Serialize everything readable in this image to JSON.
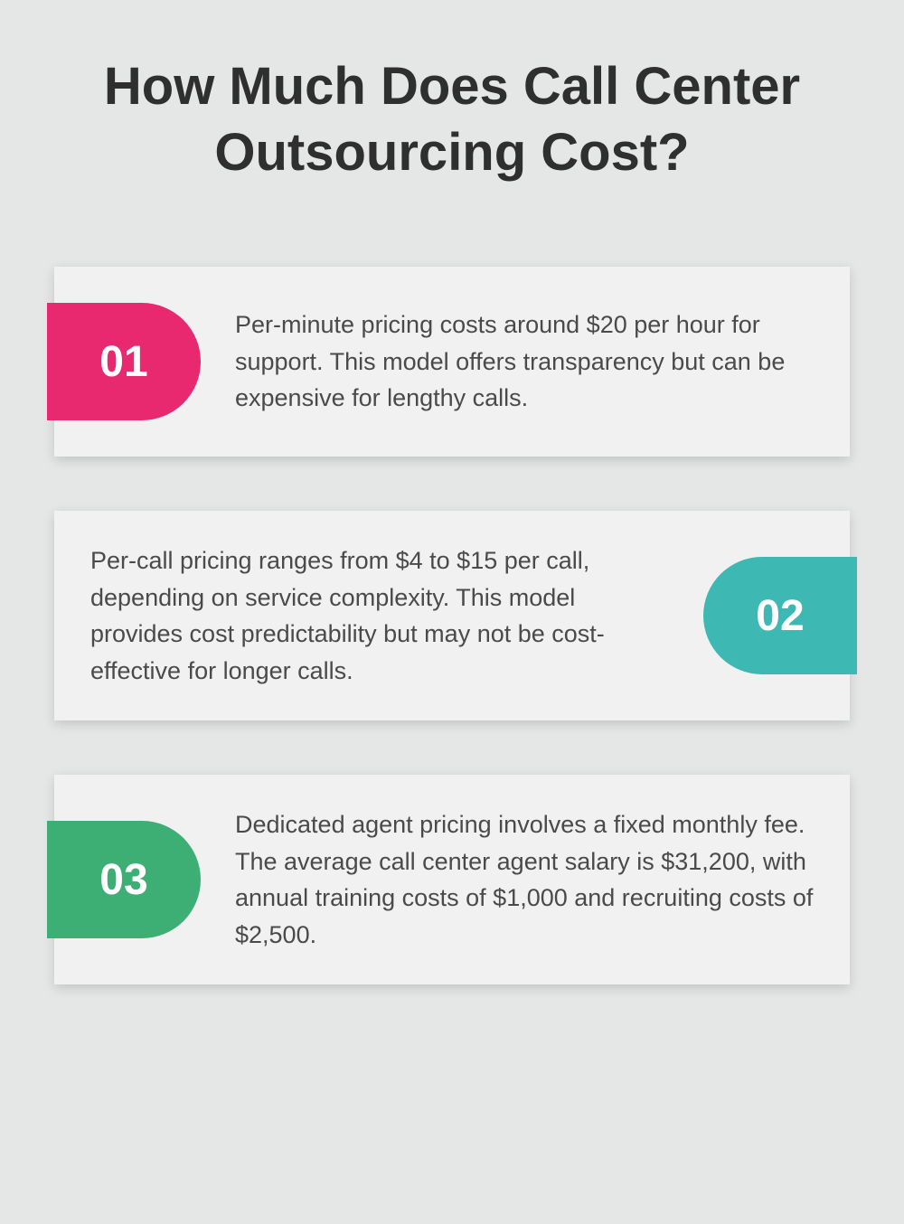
{
  "title": "How Much Does Call Center Outsourcing Cost?",
  "background_color": "#e5e7e7",
  "card_background": "#f1f1f2",
  "text_color": "#4a4a4a",
  "title_color": "#2f2f2f",
  "badge_text_color": "#ffffff",
  "cards": [
    {
      "number": "01",
      "color": "#e8296f",
      "position": "left",
      "text": "Per-minute pricing costs around $20 per hour for support. This model offers transparency but can be expensive for lengthy calls."
    },
    {
      "number": "02",
      "color": "#3eb8b3",
      "position": "right",
      "text": "Per-call pricing ranges from $4 to $15 per call, depending on service complexity. This model provides cost predictability but may not be cost-effective for longer calls."
    },
    {
      "number": "03",
      "color": "#3dae74",
      "position": "left",
      "text": "Dedicated agent pricing involves a fixed monthly fee. The average call center agent salary is $31,200, with annual training costs of $1,000 and recruiting costs of $2,500."
    }
  ]
}
